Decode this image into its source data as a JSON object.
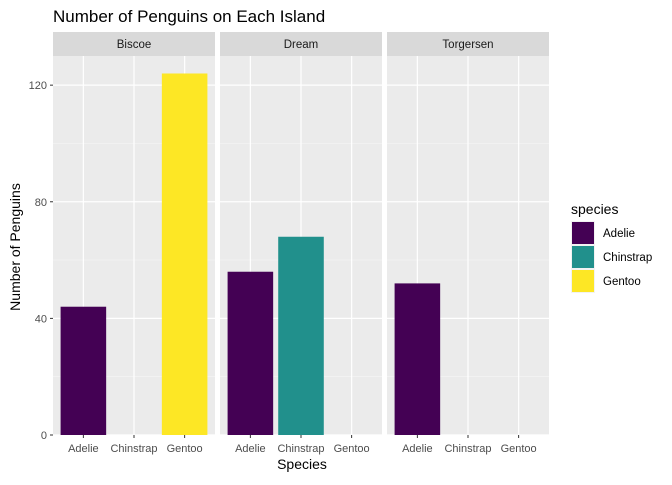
{
  "chart_data": {
    "type": "bar",
    "title": "Number of Penguins on Each Island",
    "xlabel": "Species",
    "ylabel": "Number of Penguins",
    "ylim": [
      0,
      130
    ],
    "yticks": [
      0,
      40,
      80,
      120
    ],
    "grid": true,
    "legend": {
      "title": "species",
      "position": "right",
      "entries": [
        {
          "name": "Adelie",
          "color": "#440154"
        },
        {
          "name": "Chinstrap",
          "color": "#21908C"
        },
        {
          "name": "Gentoo",
          "color": "#FDE725"
        }
      ]
    },
    "categories": [
      "Adelie",
      "Chinstrap",
      "Gentoo"
    ],
    "facets": [
      {
        "label": "Biscoe",
        "values": [
          44,
          0,
          124
        ]
      },
      {
        "label": "Dream",
        "values": [
          56,
          68,
          0
        ]
      },
      {
        "label": "Torgersen",
        "values": [
          52,
          0,
          0
        ]
      }
    ]
  }
}
